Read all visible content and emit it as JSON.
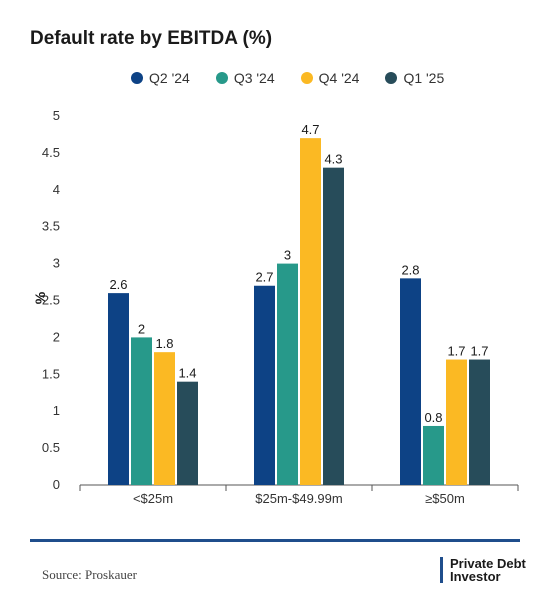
{
  "chart_data": {
    "type": "bar",
    "title": "Default rate by EBITDA (%)",
    "ylabel": "%",
    "xlabel": "",
    "ylim": [
      0,
      5
    ],
    "yticks": [
      "0",
      "0.5",
      "1",
      "1.5",
      "2",
      "2.5",
      "3",
      "3.5",
      "4",
      "4.5",
      "5"
    ],
    "categories": [
      "<$25m",
      "$25m-$49.99m",
      "≥$50m"
    ],
    "legend_position": "top",
    "grid": false,
    "series": [
      {
        "name": "Q2 '24",
        "color": "#0d4285",
        "values": [
          2.6,
          2.7,
          2.8
        ]
      },
      {
        "name": "Q3 '24",
        "color": "#27998a",
        "values": [
          2,
          3,
          0.8
        ]
      },
      {
        "name": "Q4 '24",
        "color": "#fbb923",
        "values": [
          1.8,
          4.7,
          1.7
        ]
      },
      {
        "name": "Q1 '25",
        "color": "#274c5a",
        "values": [
          1.4,
          4.3,
          1.7
        ]
      }
    ]
  },
  "footer": {
    "source": "Source: Proskauer",
    "logo_line1": "Private Debt",
    "logo_line2": "Investor"
  }
}
